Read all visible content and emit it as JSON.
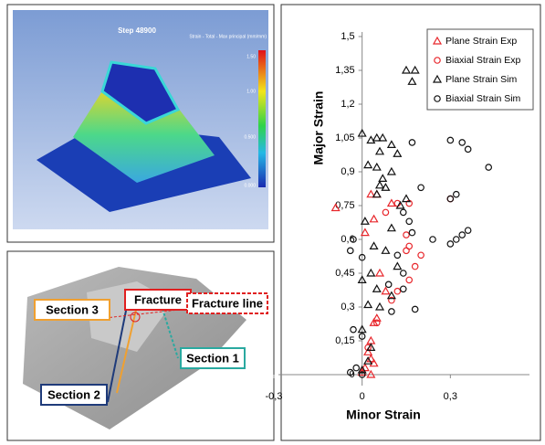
{
  "simulation_panel": {
    "title": "Step 48900",
    "legend_title": "Strain - Total - Max principal (mm/mm)",
    "legend_ticks": [
      "1.50",
      "1.00",
      "0.500",
      "0.000"
    ]
  },
  "photo_panel": {
    "labels": {
      "section_3": "Section 3",
      "fracture": "Fracture",
      "fracture_line": "Fracture line",
      "section_1": "Section 1",
      "section_2": "Section 2"
    }
  },
  "chart_data": {
    "type": "scatter",
    "x_label": "Minor Strain",
    "y_label": "Major Strain",
    "xlim": [
      -0.3,
      0.6
    ],
    "ylim": [
      0,
      1.5
    ],
    "xticks": [
      {
        "value": -0.3,
        "label": "-0,3"
      },
      0,
      {
        "value": 0.3,
        "label": "0,3"
      }
    ],
    "yticks": [
      0,
      {
        "value": 0.15,
        "label": "0,15"
      },
      {
        "value": 0.3,
        "label": "0,3"
      },
      {
        "value": 0.45,
        "label": "0,45"
      },
      {
        "value": 0.6,
        "label": "0,6"
      },
      {
        "value": 0.75,
        "label": "0,75"
      },
      {
        "value": 0.9,
        "label": "0,9"
      },
      {
        "value": 1.05,
        "label": "1,05"
      },
      {
        "value": 1.2,
        "label": "1,2"
      },
      {
        "value": 1.35,
        "label": "1,35"
      },
      {
        "value": 1.5,
        "label": "1,5"
      }
    ],
    "legend": "upper right",
    "series": [
      {
        "name": "Plane Strain Exp",
        "color": "#e8262b",
        "marker": "triangle",
        "x": [
          -0.09,
          0.03,
          0.05,
          0.04,
          0.01,
          0.1,
          0.06,
          0.08,
          0.04,
          0.05,
          0.03,
          0.02,
          0.03,
          0.04,
          0.03,
          0.01,
          0.0
        ],
        "values": [
          0.74,
          0.8,
          0.8,
          0.69,
          0.63,
          0.76,
          0.45,
          0.37,
          0.23,
          0.25,
          0.15,
          0.1,
          0.07,
          0.05,
          0.0,
          0.03,
          0.01
        ]
      },
      {
        "name": "Biaxial Strain Exp",
        "color": "#e8262b",
        "marker": "circle",
        "x": [
          0.08,
          0.12,
          0.16,
          0.15,
          0.16,
          0.15,
          0.2,
          0.18,
          0.16,
          0.12,
          0.1,
          0.3,
          0.05,
          0.02
        ],
        "values": [
          0.72,
          0.76,
          0.76,
          0.62,
          0.57,
          0.55,
          0.53,
          0.48,
          0.42,
          0.37,
          0.33,
          0.78,
          0.23,
          0.12
        ]
      },
      {
        "name": "Plane Strain Sim",
        "color": "#111111",
        "marker": "triangle",
        "x": [
          0.15,
          0.18,
          0.17,
          0.0,
          0.03,
          0.05,
          0.07,
          0.1,
          0.06,
          0.12,
          0.02,
          0.05,
          0.1,
          0.07,
          0.06,
          0.08,
          0.05,
          0.15,
          0.13,
          0.01,
          0.1,
          0.04,
          0.08,
          0.12,
          0.03,
          0.0,
          0.05,
          0.1,
          0.02,
          0.06,
          0.0,
          0.03,
          0.02,
          0.0
        ],
        "values": [
          1.35,
          1.35,
          1.3,
          1.07,
          1.04,
          1.05,
          1.05,
          1.02,
          0.99,
          0.98,
          0.93,
          0.92,
          0.9,
          0.87,
          0.84,
          0.83,
          0.8,
          0.78,
          0.75,
          0.68,
          0.65,
          0.57,
          0.55,
          0.48,
          0.45,
          0.42,
          0.38,
          0.35,
          0.31,
          0.3,
          0.2,
          0.12,
          0.06,
          0.02
        ]
      },
      {
        "name": "Biaxial Strain Sim",
        "color": "#111111",
        "marker": "circle",
        "x": [
          0.17,
          0.3,
          0.34,
          0.36,
          0.43,
          0.32,
          0.3,
          0.2,
          0.14,
          0.16,
          0.17,
          0.36,
          0.34,
          0.32,
          0.3,
          0.24,
          -0.03,
          -0.04,
          0.0,
          0.12,
          0.14,
          0.09,
          0.14,
          0.18,
          0.1,
          -0.03,
          0.0,
          -0.02,
          -0.04,
          0.0
        ],
        "values": [
          1.03,
          1.04,
          1.03,
          1.0,
          0.92,
          0.8,
          0.78,
          0.83,
          0.72,
          0.68,
          0.63,
          0.64,
          0.62,
          0.6,
          0.58,
          0.6,
          0.6,
          0.55,
          0.52,
          0.53,
          0.45,
          0.4,
          0.38,
          0.29,
          0.28,
          0.2,
          0.17,
          0.03,
          0.01,
          0.0
        ]
      }
    ]
  }
}
